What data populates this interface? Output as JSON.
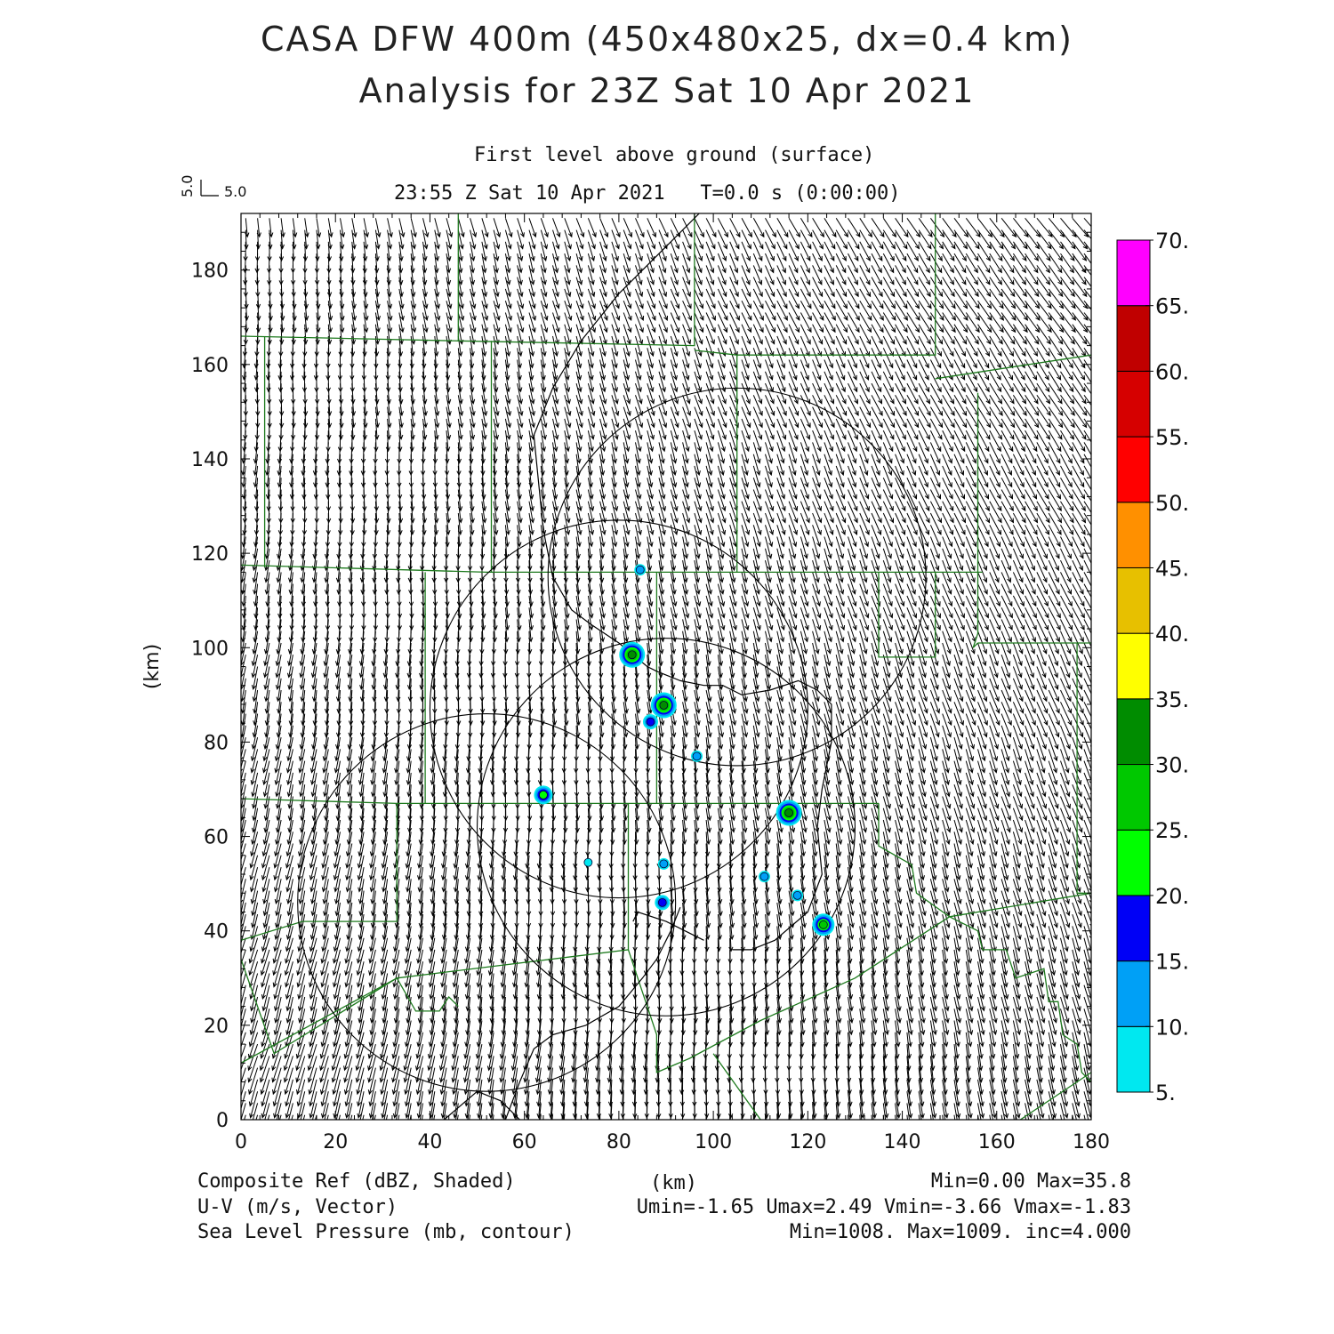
{
  "header": {
    "title_line1": "CASA DFW 400m (450x480x25, dx=0.4 km)",
    "title_line2": "Analysis for 23Z Sat 10 Apr 2021",
    "level": "First level above ground (surface)",
    "time": "23:55 Z Sat 10 Apr 2021   T=0.0 s (0:00:00)",
    "ref_vector_v": "5.0",
    "ref_vector_u": "5.0"
  },
  "axes": {
    "xlabel": "(km)",
    "ylabel": "(km)",
    "xlim": [
      0,
      180
    ],
    "ylim": [
      0,
      192
    ],
    "xticks": [
      "0",
      "20",
      "40",
      "60",
      "80",
      "100",
      "120",
      "140",
      "160",
      "180"
    ],
    "yticks": [
      "0",
      "20",
      "40",
      "60",
      "80",
      "100",
      "120",
      "140",
      "160",
      "180"
    ]
  },
  "colorbar": {
    "labels": [
      "5.",
      "10.",
      "15.",
      "20.",
      "25.",
      "30.",
      "35.",
      "40.",
      "45.",
      "50.",
      "55.",
      "60.",
      "65.",
      "70."
    ],
    "colors": [
      "#00e8f0",
      "#00a0f6",
      "#0000f6",
      "#00ff00",
      "#00c800",
      "#008c00",
      "#ffff00",
      "#e7c000",
      "#ff9000",
      "#ff0000",
      "#d60000",
      "#c00000",
      "#ff00ff"
    ]
  },
  "footer": {
    "left1": "Composite Ref (dBZ, Shaded)",
    "left2": "U-V (m/s, Vector)",
    "left3": "Sea Level Pressure (mb, contour)",
    "center_xlabel": "(km)",
    "right1": "Min=0.00 Max=35.8",
    "right2": "Umin=-1.65 Umax=2.49 Vmin=-3.66 Vmax=-1.83",
    "right3": "Min=1008. Max=1009. inc=4.000"
  },
  "map_data": {
    "radar_rings": [
      {
        "cx": 105,
        "cy": 115,
        "r": 40
      },
      {
        "cx": 80,
        "cy": 87,
        "r": 40
      },
      {
        "cx": 90,
        "cy": 62,
        "r": 40
      },
      {
        "cx": 52,
        "cy": 46,
        "r": 40
      }
    ],
    "reflectivity_cells": [
      {
        "x": 84.5,
        "y": 116.5,
        "dbz": 10
      },
      {
        "x": 82.8,
        "y": 98.5,
        "dbz": 30
      },
      {
        "x": 89.5,
        "y": 87.8,
        "dbz": 30
      },
      {
        "x": 86.7,
        "y": 84.3,
        "dbz": 15
      },
      {
        "x": 96.5,
        "y": 77.0,
        "dbz": 10
      },
      {
        "x": 64.0,
        "y": 68.8,
        "dbz": 20
      },
      {
        "x": 116.0,
        "y": 65.0,
        "dbz": 30
      },
      {
        "x": 89.5,
        "y": 54.2,
        "dbz": 10
      },
      {
        "x": 73.5,
        "y": 54.5,
        "dbz": 5
      },
      {
        "x": 110.8,
        "y": 51.5,
        "dbz": 10
      },
      {
        "x": 89.2,
        "y": 46.0,
        "dbz": 15
      },
      {
        "x": 117.8,
        "y": 47.5,
        "dbz": 10
      },
      {
        "x": 123.3,
        "y": 41.3,
        "dbz": 25
      }
    ],
    "counties": [
      [
        [
          0,
          166
        ],
        [
          46,
          165
        ],
        [
          46,
          192
        ]
      ],
      [
        [
          5,
          166
        ],
        [
          5,
          117
        ]
      ],
      [
        [
          0,
          117.5
        ],
        [
          52,
          116
        ],
        [
          96,
          116
        ],
        [
          137,
          116
        ],
        [
          157,
          116
        ]
      ],
      [
        [
          53,
          165
        ],
        [
          53,
          116
        ]
      ],
      [
        [
          46,
          165
        ],
        [
          96,
          164
        ],
        [
          96,
          192
        ]
      ],
      [
        [
          96,
          163
        ],
        [
          105,
          162
        ],
        [
          147,
          162
        ],
        [
          147,
          192
        ]
      ],
      [
        [
          105,
          162
        ],
        [
          105,
          116
        ]
      ],
      [
        [
          147,
          157
        ],
        [
          180,
          162
        ]
      ],
      [
        [
          156,
          154
        ],
        [
          156,
          116
        ]
      ],
      [
        [
          156,
          101
        ],
        [
          177,
          101
        ],
        [
          180,
          101
        ]
      ],
      [
        [
          156,
          116
        ],
        [
          156,
          103
        ],
        [
          155,
          100
        ],
        [
          156,
          101
        ]
      ],
      [
        [
          39,
          116
        ],
        [
          39,
          67
        ]
      ],
      [
        [
          88,
          116
        ],
        [
          88,
          67
        ]
      ],
      [
        [
          135,
          116
        ],
        [
          135,
          98
        ],
        [
          143,
          98
        ],
        [
          147,
          98
        ],
        [
          147,
          116
        ]
      ],
      [
        [
          177,
          101
        ],
        [
          177,
          48
        ],
        [
          180,
          48
        ]
      ],
      [
        [
          0,
          68
        ],
        [
          33,
          67
        ],
        [
          88,
          67
        ],
        [
          135,
          67
        ]
      ],
      [
        [
          33,
          67
        ],
        [
          33,
          42
        ],
        [
          13,
          42
        ],
        [
          0,
          38
        ]
      ],
      [
        [
          33,
          30
        ],
        [
          37,
          23
        ],
        [
          42,
          23
        ],
        [
          44,
          26
        ],
        [
          46,
          24
        ]
      ],
      [
        [
          0,
          34
        ],
        [
          7,
          14
        ],
        [
          33,
          30
        ],
        [
          82,
          36
        ],
        [
          82,
          67
        ]
      ],
      [
        [
          0,
          12
        ],
        [
          33,
          30
        ]
      ],
      [
        [
          82,
          36
        ],
        [
          88,
          18
        ],
        [
          88,
          10
        ],
        [
          95,
          13
        ],
        [
          110,
          21
        ],
        [
          130,
          30
        ],
        [
          150,
          43
        ],
        [
          180,
          48
        ]
      ],
      [
        [
          135,
          67
        ],
        [
          135,
          58
        ],
        [
          142,
          54
        ],
        [
          143,
          48
        ],
        [
          150,
          43
        ],
        [
          156,
          40
        ],
        [
          157,
          36
        ],
        [
          162,
          36
        ],
        [
          164,
          30
        ],
        [
          170,
          32
        ],
        [
          171,
          25
        ],
        [
          173,
          25
        ],
        [
          174,
          18
        ],
        [
          177,
          16
        ],
        [
          178,
          10
        ],
        [
          180,
          8
        ]
      ],
      [
        [
          100,
          14
        ],
        [
          110,
          0
        ]
      ],
      [
        [
          165,
          0
        ],
        [
          180,
          10
        ]
      ]
    ],
    "pressure_contours": [
      [
        [
          97,
          192
        ],
        [
          90,
          185
        ],
        [
          80,
          175
        ],
        [
          72,
          165
        ],
        [
          66,
          155
        ],
        [
          62,
          145
        ],
        [
          63,
          135
        ],
        [
          64,
          125
        ],
        [
          66,
          115
        ],
        [
          70,
          108
        ],
        [
          74,
          105
        ],
        [
          80,
          101
        ],
        [
          86,
          96
        ],
        [
          88,
          95
        ],
        [
          93,
          93
        ],
        [
          98,
          92
        ],
        [
          102,
          92
        ],
        [
          106,
          90
        ],
        [
          112,
          91
        ],
        [
          118,
          93
        ],
        [
          122,
          91
        ],
        [
          125,
          88
        ],
        [
          125,
          80
        ],
        [
          123,
          70
        ],
        [
          122,
          62
        ],
        [
          123,
          52
        ],
        [
          120,
          44
        ],
        [
          113,
          38
        ],
        [
          108,
          36
        ],
        [
          104,
          36
        ]
      ],
      [
        [
          83,
          42
        ],
        [
          84,
          44
        ],
        [
          90,
          42
        ],
        [
          94,
          40
        ],
        [
          98,
          38
        ]
      ],
      [
        [
          93,
          45
        ],
        [
          91,
          40
        ],
        [
          88,
          34
        ],
        [
          85,
          30
        ],
        [
          80,
          24
        ],
        [
          73,
          20
        ],
        [
          66,
          18
        ],
        [
          62,
          15
        ],
        [
          59,
          8
        ],
        [
          56,
          0
        ]
      ],
      [
        [
          43,
          0
        ],
        [
          50,
          6
        ],
        [
          55,
          4
        ],
        [
          59,
          0
        ]
      ]
    ]
  }
}
